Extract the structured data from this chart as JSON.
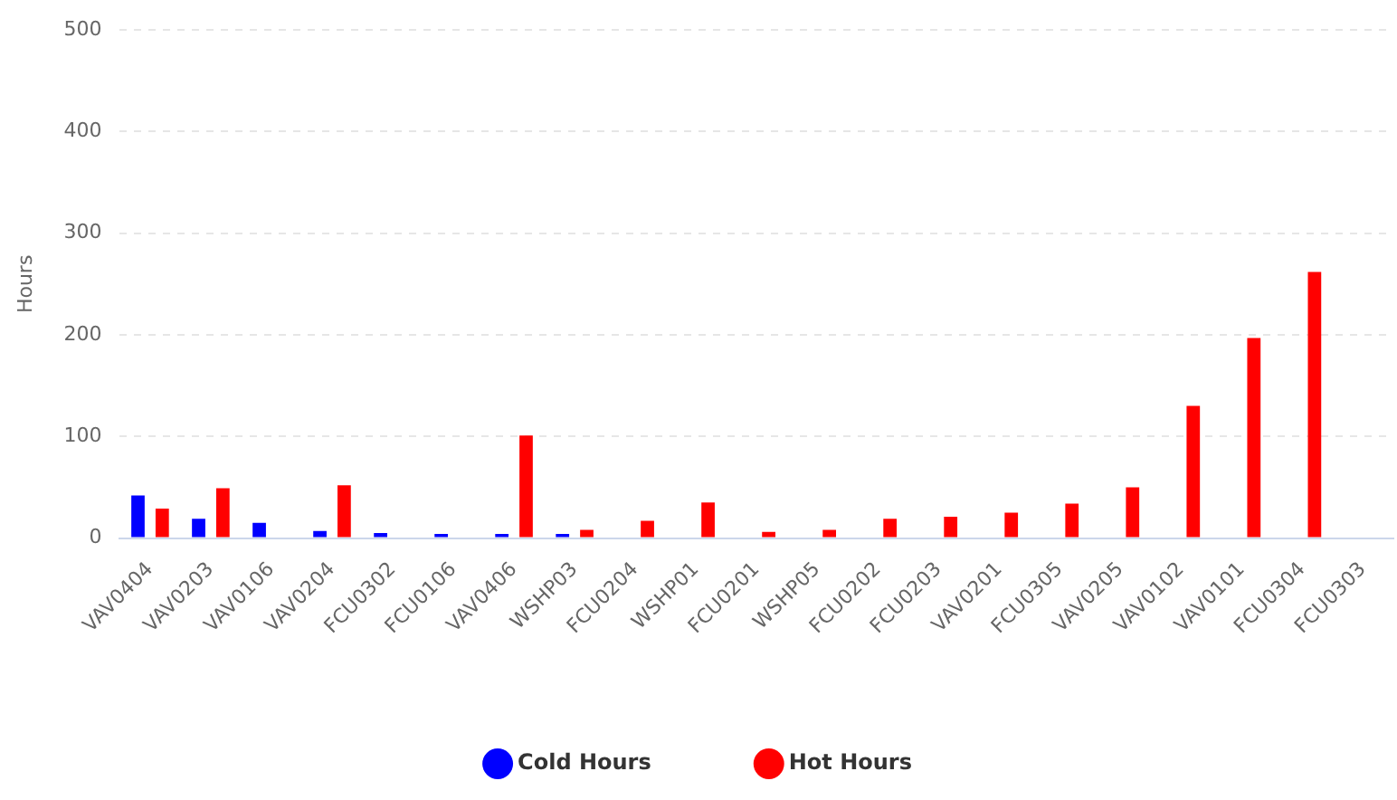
{
  "chart_data": {
    "type": "bar",
    "ylabel": "Hours",
    "categories": [
      "VAV0404",
      "VAV0203",
      "VAV0106",
      "VAV0204",
      "FCU0302",
      "FCU0106",
      "VAV0406",
      "WSHP03",
      "FCU0204",
      "WSHP01",
      "FCU0201",
      "WSHP05",
      "FCU0202",
      "FCU0203",
      "VAV0201",
      "FCU0305",
      "VAV0205",
      "VAV0102",
      "VAV0101",
      "FCU0304",
      "FCU0303"
    ],
    "series": [
      {
        "name": "Cold Hours",
        "color": "#0000ff",
        "values": [
          42,
          19,
          15,
          7,
          5,
          4,
          4,
          4,
          0,
          0,
          0,
          0,
          0,
          0,
          0,
          0,
          0,
          0,
          0,
          0,
          0
        ]
      },
      {
        "name": "Hot Hours",
        "color": "#ff0000",
        "values": [
          29,
          49,
          0,
          52,
          0,
          0,
          101,
          8,
          17,
          35,
          6,
          8,
          19,
          21,
          25,
          34,
          50,
          130,
          197,
          262,
          0
        ]
      }
    ],
    "ylim": [
      0,
      500
    ],
    "yticks": [
      0,
      100,
      200,
      300,
      400,
      500
    ],
    "grid": "y",
    "legend": "bottom"
  }
}
